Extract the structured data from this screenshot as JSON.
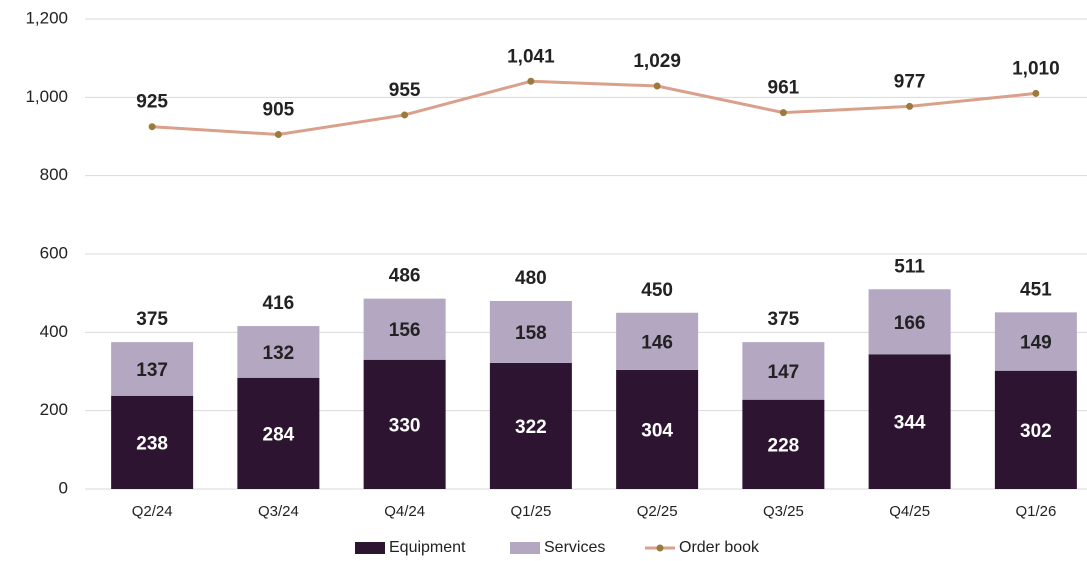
{
  "chart_data": {
    "type": "bar",
    "categories": [
      "Q2/24",
      "Q3/24",
      "Q4/24",
      "Q1/25",
      "Q2/25",
      "Q3/25",
      "Q4/25",
      "Q1/26"
    ],
    "series": [
      {
        "name": "Equipment",
        "type": "bar",
        "color": "#2d1531",
        "values": [
          238,
          284,
          330,
          322,
          304,
          228,
          344,
          302
        ]
      },
      {
        "name": "Services",
        "type": "bar",
        "color": "#b4a7c2",
        "values": [
          137,
          132,
          156,
          158,
          146,
          147,
          166,
          149
        ]
      },
      {
        "name": "Order book",
        "type": "line",
        "color": "#d9a08c",
        "marker_color": "#9a7b3c",
        "values": [
          925,
          905,
          955,
          1041,
          1029,
          961,
          977,
          1010
        ],
        "value_labels": [
          "925",
          "905",
          "955",
          "1,041",
          "1,029",
          "961",
          "977",
          "1,010"
        ]
      }
    ],
    "totals": [
      375,
      416,
      486,
      480,
      450,
      375,
      511,
      451
    ],
    "ylim": [
      0,
      1200
    ],
    "yticks": [
      0,
      200,
      400,
      600,
      800,
      {
        "value": 1000,
        "label": "1,000"
      },
      {
        "value": 1200,
        "label": "1,200"
      }
    ],
    "grid": true,
    "legend": "bottom"
  }
}
